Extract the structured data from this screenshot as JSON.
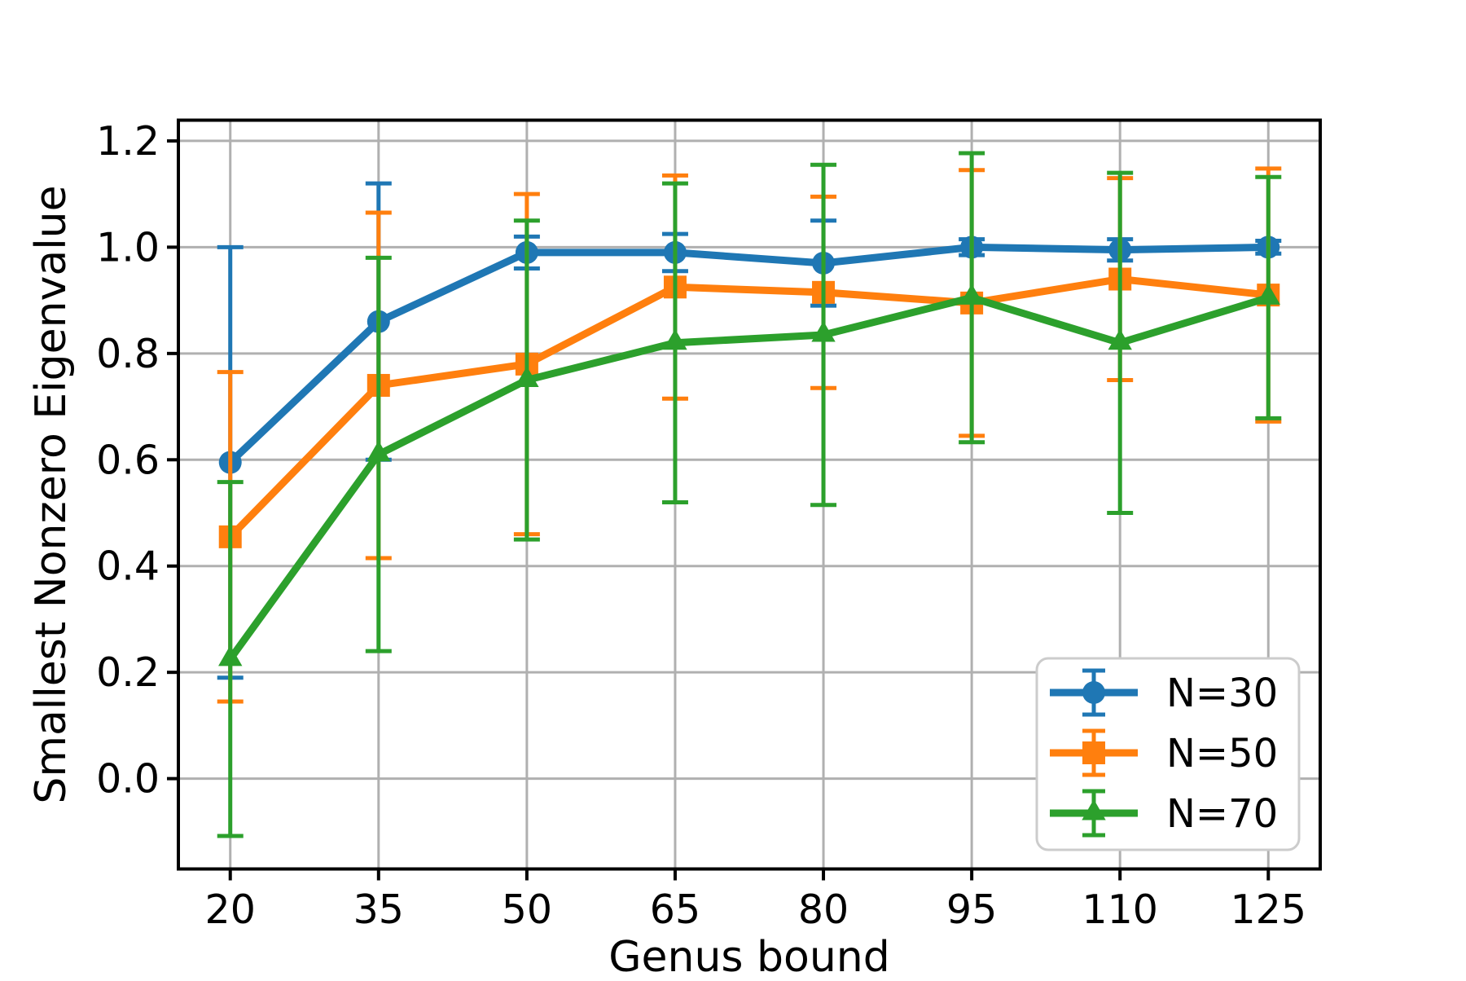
{
  "chart_data": {
    "type": "line",
    "title": "",
    "xlabel": "Genus bound",
    "ylabel": "Smallest Nonzero Eigenvalue",
    "x": [
      20,
      35,
      50,
      65,
      80,
      95,
      110,
      125
    ],
    "xlim": [
      14.75,
      130.25
    ],
    "ylim": [
      -0.17,
      1.239
    ],
    "xticks": {
      "values": [
        20,
        35,
        50,
        65,
        80,
        95,
        110,
        125
      ],
      "labels": [
        "20",
        "35",
        "50",
        "65",
        "80",
        "95",
        "110",
        "125"
      ]
    },
    "yticks": {
      "values": [
        0.0,
        0.2,
        0.4,
        0.6,
        0.8,
        1.0,
        1.2
      ],
      "labels": [
        "0.0",
        "0.2",
        "0.4",
        "0.6",
        "0.8",
        "1.0",
        "1.2"
      ]
    },
    "grid": true,
    "legend_position": "lower right",
    "series": [
      {
        "name": "N=30",
        "color": "#1f77b4",
        "marker": "circle",
        "values": [
          0.595,
          0.86,
          0.99,
          0.99,
          0.97,
          1.0,
          0.995,
          1.0
        ],
        "errors": [
          0.405,
          0.26,
          0.03,
          0.035,
          0.08,
          0.015,
          0.02,
          0.012
        ]
      },
      {
        "name": "N=50",
        "color": "#ff7f0e",
        "marker": "square",
        "values": [
          0.455,
          0.74,
          0.78,
          0.925,
          0.915,
          0.895,
          0.94,
          0.91
        ],
        "errors": [
          0.31,
          0.325,
          0.32,
          0.21,
          0.18,
          0.25,
          0.19,
          0.238
        ]
      },
      {
        "name": "N=70",
        "color": "#2ca02c",
        "marker": "triangle",
        "values": [
          0.225,
          0.61,
          0.75,
          0.82,
          0.835,
          0.905,
          0.82,
          0.905
        ],
        "errors": [
          0.333,
          0.37,
          0.3,
          0.3,
          0.32,
          0.272,
          0.32,
          0.227
        ]
      }
    ]
  },
  "colors": {
    "background": "#ffffff",
    "grid": "#b0b0b0",
    "spine": "#000000",
    "tick": "#000000",
    "legend_border": "#cccccc",
    "legend_background": "#ffffff"
  }
}
